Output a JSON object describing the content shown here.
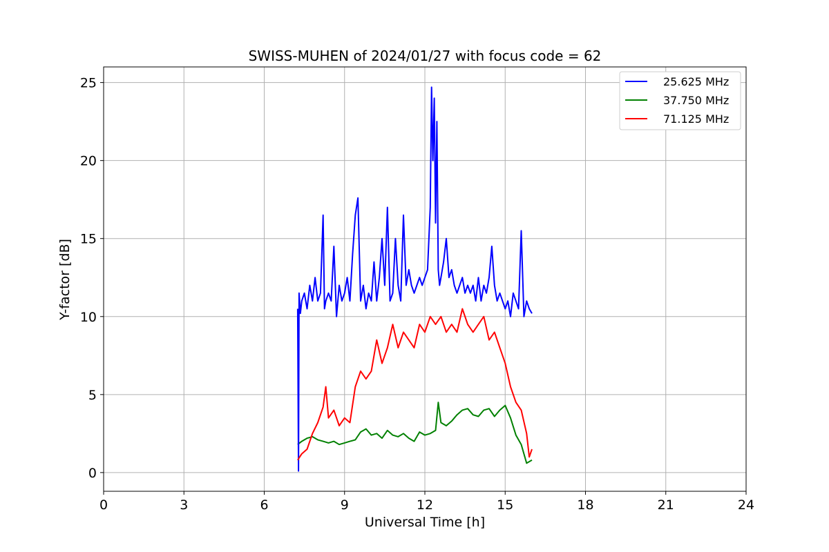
{
  "chart_data": {
    "type": "line",
    "title": "SWISS-MUHEN of 2024/01/27 with focus code = 62",
    "xlabel": "Universal Time [h]",
    "ylabel": "Y-factor [dB]",
    "xlim": [
      0,
      24
    ],
    "ylim": [
      -1.2,
      26
    ],
    "xticks": [
      0,
      3,
      6,
      9,
      12,
      15,
      18,
      21,
      24
    ],
    "yticks": [
      0,
      5,
      10,
      15,
      20,
      25
    ],
    "grid": true,
    "legend_position": "top-right",
    "series": [
      {
        "name": "25.625 MHz",
        "color": "#0000ff",
        "x": [
          7.25,
          7.28,
          7.3,
          7.35,
          7.4,
          7.5,
          7.6,
          7.7,
          7.8,
          7.9,
          8.0,
          8.1,
          8.2,
          8.25,
          8.3,
          8.4,
          8.5,
          8.6,
          8.7,
          8.8,
          8.9,
          9.0,
          9.1,
          9.2,
          9.3,
          9.4,
          9.5,
          9.6,
          9.7,
          9.8,
          9.9,
          10.0,
          10.1,
          10.2,
          10.3,
          10.4,
          10.5,
          10.6,
          10.7,
          10.8,
          10.9,
          11.0,
          11.1,
          11.2,
          11.3,
          11.4,
          11.5,
          11.6,
          11.7,
          11.8,
          11.9,
          12.0,
          12.1,
          12.2,
          12.25,
          12.3,
          12.35,
          12.4,
          12.45,
          12.5,
          12.55,
          12.6,
          12.7,
          12.8,
          12.9,
          13.0,
          13.1,
          13.2,
          13.3,
          13.4,
          13.5,
          13.6,
          13.7,
          13.8,
          13.9,
          14.0,
          14.1,
          14.2,
          14.3,
          14.4,
          14.5,
          14.6,
          14.7,
          14.8,
          14.9,
          15.0,
          15.1,
          15.2,
          15.3,
          15.4,
          15.5,
          15.6,
          15.7,
          15.8,
          15.9,
          16.0
        ],
        "y": [
          10.5,
          0.1,
          11.5,
          10.2,
          11.0,
          11.5,
          10.5,
          12.0,
          11.0,
          12.5,
          11.0,
          11.5,
          16.5,
          10.5,
          11.0,
          11.5,
          11.0,
          14.5,
          10.0,
          12.0,
          11.0,
          11.5,
          12.5,
          11.0,
          14.0,
          16.5,
          17.6,
          11.0,
          12.0,
          10.5,
          11.5,
          11.0,
          13.5,
          11.0,
          12.5,
          15.0,
          12.0,
          17.0,
          11.0,
          11.5,
          15.0,
          12.0,
          11.0,
          16.5,
          12.0,
          13.0,
          12.0,
          11.5,
          12.0,
          12.5,
          12.0,
          12.5,
          13.0,
          17.0,
          24.7,
          20.0,
          24.0,
          16.0,
          22.5,
          13.0,
          12.0,
          12.5,
          13.5,
          15.0,
          12.5,
          13.0,
          12.0,
          11.5,
          12.0,
          12.5,
          11.5,
          12.0,
          11.5,
          12.0,
          11.0,
          12.5,
          11.0,
          12.0,
          11.5,
          12.5,
          14.5,
          12.0,
          11.0,
          11.5,
          11.0,
          10.5,
          11.0,
          10.0,
          11.5,
          11.0,
          10.5,
          15.5,
          10.0,
          11.0,
          10.5,
          10.2
        ]
      },
      {
        "name": "37.750 MHz",
        "color": "#008000",
        "x": [
          7.25,
          7.4,
          7.6,
          7.8,
          8.0,
          8.2,
          8.4,
          8.6,
          8.8,
          9.0,
          9.2,
          9.4,
          9.6,
          9.8,
          10.0,
          10.2,
          10.4,
          10.6,
          10.8,
          11.0,
          11.2,
          11.4,
          11.6,
          11.8,
          12.0,
          12.2,
          12.4,
          12.5,
          12.6,
          12.8,
          13.0,
          13.2,
          13.4,
          13.6,
          13.8,
          14.0,
          14.2,
          14.4,
          14.6,
          14.8,
          15.0,
          15.2,
          15.4,
          15.6,
          15.8,
          16.0
        ],
        "y": [
          1.8,
          2.0,
          2.2,
          2.3,
          2.1,
          2.0,
          1.9,
          2.0,
          1.8,
          1.9,
          2.0,
          2.1,
          2.6,
          2.8,
          2.4,
          2.5,
          2.2,
          2.7,
          2.4,
          2.3,
          2.5,
          2.2,
          2.0,
          2.6,
          2.4,
          2.5,
          2.7,
          4.5,
          3.2,
          3.0,
          3.3,
          3.7,
          4.0,
          4.1,
          3.7,
          3.6,
          4.0,
          4.1,
          3.6,
          4.0,
          4.3,
          3.5,
          2.4,
          1.8,
          0.6,
          0.8
        ]
      },
      {
        "name": "71.125 MHz",
        "color": "#ff0000",
        "x": [
          7.25,
          7.4,
          7.6,
          7.8,
          8.0,
          8.2,
          8.3,
          8.4,
          8.6,
          8.8,
          9.0,
          9.2,
          9.4,
          9.6,
          9.8,
          10.0,
          10.2,
          10.4,
          10.6,
          10.8,
          11.0,
          11.2,
          11.4,
          11.6,
          11.8,
          12.0,
          12.2,
          12.4,
          12.6,
          12.8,
          13.0,
          13.2,
          13.4,
          13.6,
          13.8,
          14.0,
          14.2,
          14.4,
          14.6,
          14.8,
          15.0,
          15.2,
          15.4,
          15.6,
          15.8,
          15.9,
          16.0
        ],
        "y": [
          0.8,
          1.2,
          1.5,
          2.5,
          3.2,
          4.2,
          5.5,
          3.5,
          4.0,
          3.0,
          3.5,
          3.2,
          5.5,
          6.5,
          6.0,
          6.5,
          8.5,
          7.0,
          8.0,
          9.5,
          8.0,
          9.0,
          8.5,
          8.0,
          9.5,
          9.0,
          10.0,
          9.5,
          10.0,
          9.0,
          9.5,
          9.0,
          10.5,
          9.5,
          9.0,
          9.5,
          10.0,
          8.5,
          9.0,
          8.0,
          7.0,
          5.5,
          4.5,
          4.0,
          2.5,
          1.0,
          1.5
        ]
      }
    ]
  }
}
